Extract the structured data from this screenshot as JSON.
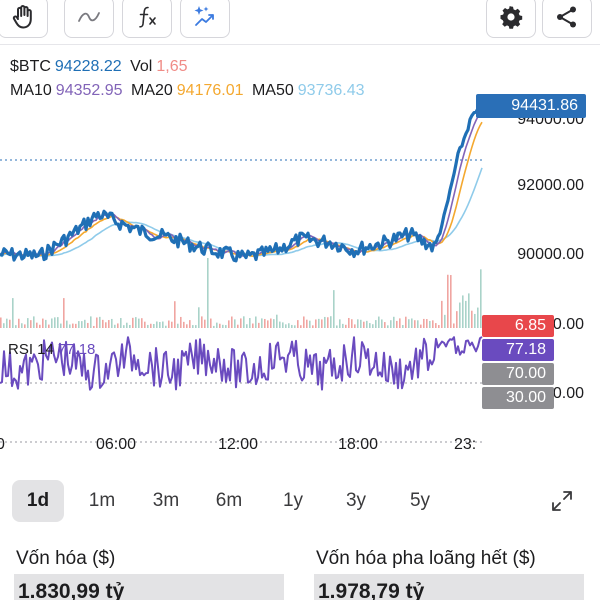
{
  "toolbar": {
    "icons": [
      "hand-icon",
      "line-icon",
      "function-icon",
      "magic-icon",
      "gear-icon",
      "share-icon"
    ]
  },
  "legend": {
    "symbol": "$BTC",
    "price": "94228.22",
    "vol_label": "Vol",
    "vol_value": "1,65",
    "ma10_label": "MA10",
    "ma10_value": "94352.95",
    "ma20_label": "MA20",
    "ma20_value": "94176.01",
    "ma50_label": "MA50",
    "ma50_value": "93736.43"
  },
  "price_axis": {
    "current": "94431.86",
    "ticks": [
      "94000.00",
      "92000.00",
      "90000.00"
    ],
    "vol_tag": "6.85",
    "vol_tick": "00.00"
  },
  "rsi": {
    "label": "RSI 14",
    "value_text": "77.18",
    "tag": "77.18",
    "upper": "70.00",
    "lower": "30.00",
    "tick": "00.00"
  },
  "time_axis": {
    "labels": [
      "0",
      "06:00",
      "12:00",
      "18:00",
      "23:"
    ]
  },
  "ranges": {
    "items": [
      "1d",
      "1m",
      "3m",
      "6m",
      "1y",
      "3y",
      "5y"
    ],
    "active": "1d"
  },
  "stats": {
    "market_cap_label": "Vốn hóa ($)",
    "market_cap_value": "1.830,99 tỷ",
    "fdv_label": "Vốn hóa pha loãng hết ($)",
    "fdv_value": "1.978,79 tỷ"
  },
  "colors": {
    "price_line": "#1f6fb5",
    "ma10": "#8264b8",
    "ma20": "#f4a82f",
    "ma50": "#8fcbea",
    "vol_up": "#f0a5a1",
    "vol_down": "#a9d3c9",
    "rsi": "#6a4bbf",
    "price_tag": "#2a6fb7",
    "vol_tag": "#e8474b",
    "rsi_tag": "#6a4bbf",
    "level_tag": "#8e8e92"
  }
}
